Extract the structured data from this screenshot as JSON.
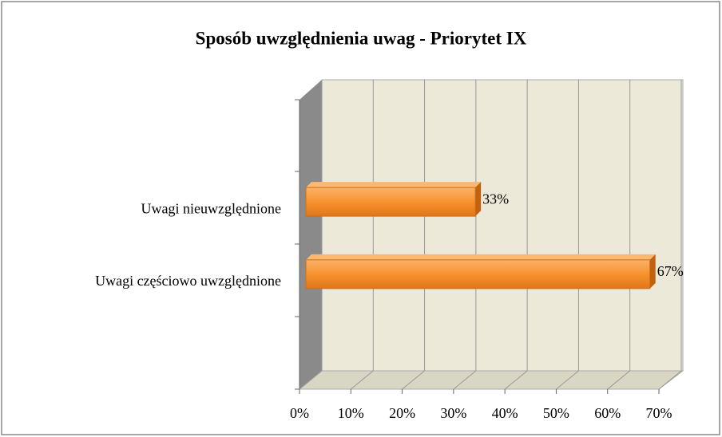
{
  "chart_data": {
    "type": "bar3d_horizontal",
    "title": "Sposób uwzględnienia uwag - Priorytet IX",
    "categories": [
      null,
      "Uwagi nieuwzględnione",
      "Uwagi częściowo uwzględnione",
      null
    ],
    "values": [
      null,
      33,
      67,
      null
    ],
    "value_labels": [
      null,
      "33%",
      "67%",
      null
    ],
    "color": "#f58a22",
    "xlim": [
      0,
      70
    ],
    "xticks": [
      {
        "value": 0,
        "label": "0%"
      },
      {
        "value": 10,
        "label": "10%"
      },
      {
        "value": 20,
        "label": "20%"
      },
      {
        "value": 30,
        "label": "30%"
      },
      {
        "value": 40,
        "label": "40%"
      },
      {
        "value": 50,
        "label": "50%"
      },
      {
        "value": 60,
        "label": "60%"
      },
      {
        "value": 70,
        "label": "70%"
      }
    ],
    "grid": true
  }
}
